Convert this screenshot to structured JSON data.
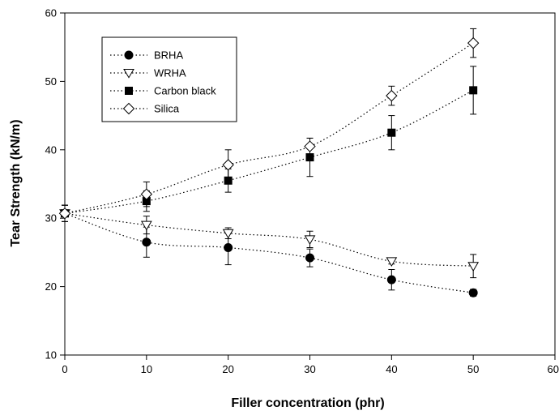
{
  "chart_data": {
    "type": "line",
    "title": "",
    "xlabel": "Filler concentration (phr)",
    "ylabel": "Tear Strength (kN/m)",
    "xlim": [
      0,
      60
    ],
    "ylim": [
      10,
      60
    ],
    "xticks": [
      0,
      10,
      20,
      30,
      40,
      50,
      60
    ],
    "yticks": [
      10,
      20,
      30,
      40,
      50,
      60
    ],
    "grid": false,
    "legend_position": "top-left",
    "x": [
      0,
      10,
      20,
      30,
      40,
      50
    ],
    "series": [
      {
        "name": "BRHA",
        "marker": "filled-circle",
        "values": [
          30.7,
          26.5,
          25.7,
          24.2,
          21.0,
          19.1
        ],
        "errors": [
          1.2,
          2.2,
          2.5,
          1.3,
          1.5,
          0.5
        ]
      },
      {
        "name": "WRHA",
        "marker": "open-triangle-down",
        "values": [
          30.7,
          29.0,
          27.8,
          26.9,
          23.7,
          23.0
        ],
        "errors": [
          1.2,
          1.3,
          0.8,
          1.2,
          0.4,
          1.7
        ]
      },
      {
        "name": "Carbon black",
        "marker": "filled-square",
        "values": [
          30.7,
          32.5,
          35.5,
          38.9,
          42.5,
          48.7
        ],
        "errors": [
          1.2,
          1.5,
          1.7,
          2.8,
          2.5,
          3.5
        ]
      },
      {
        "name": "Silica",
        "marker": "open-diamond",
        "values": [
          30.7,
          33.5,
          37.8,
          40.5,
          47.9,
          55.6
        ],
        "errors": [
          1.2,
          1.8,
          2.2,
          1.2,
          1.4,
          2.1
        ]
      }
    ]
  }
}
